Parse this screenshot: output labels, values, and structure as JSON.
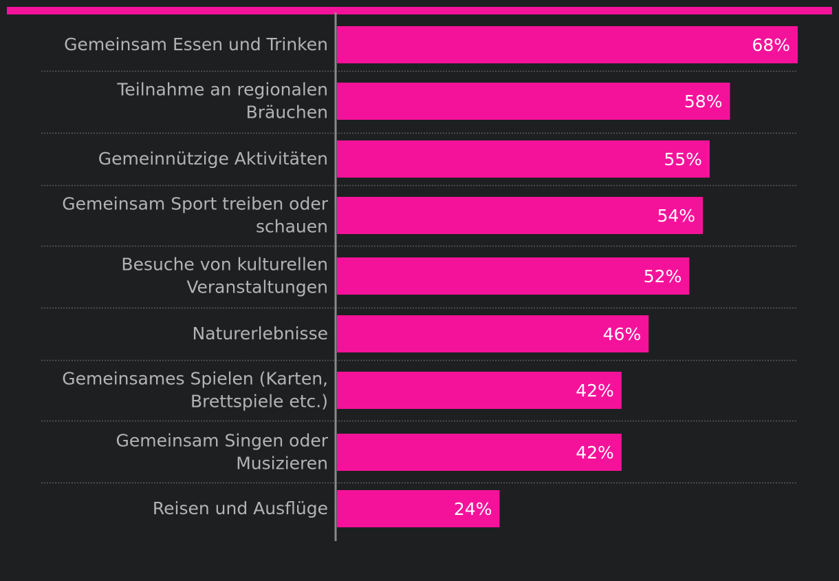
{
  "colors": {
    "background": "#1e1f21",
    "accent": "#f5129a",
    "label_text": "#b3b3b3",
    "value_text": "#ffffff",
    "axis": "#8a8a8a",
    "separator": "#5a5a5a"
  },
  "chart_data": {
    "type": "bar",
    "orientation": "horizontal",
    "title": "",
    "xlabel": "",
    "ylabel": "",
    "unit": "%",
    "xlim": [
      0,
      70
    ],
    "grid": false,
    "legend": "none",
    "categories": [
      [
        "Gemeinsam Essen und Trinken"
      ],
      [
        "Teilnahme an regionalen",
        "Bräuchen"
      ],
      [
        "Gemeinnützige Aktivitäten"
      ],
      [
        "Gemeinsam Sport treiben oder",
        "schauen"
      ],
      [
        "Besuche von kulturellen",
        "Veranstaltungen"
      ],
      [
        "Naturerlebnisse"
      ],
      [
        "Gemeinsames Spielen (Karten,",
        "Brettspiele etc.)"
      ],
      [
        "Gemeinsam Singen oder",
        "Musizieren"
      ],
      [
        "Reisen und Ausflüge"
      ]
    ],
    "values": [
      68,
      58,
      55,
      54,
      52,
      46,
      42,
      42,
      24
    ],
    "value_labels": [
      "68%",
      "58%",
      "55%",
      "54%",
      "52%",
      "46%",
      "42%",
      "42%",
      "24%"
    ]
  }
}
